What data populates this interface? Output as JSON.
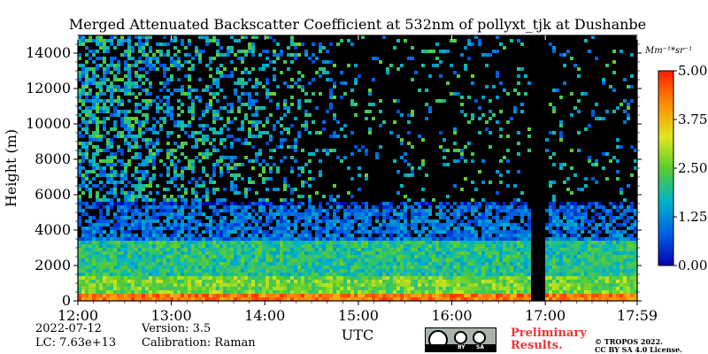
{
  "chart_data": {
    "type": "heatmap",
    "title": "Merged Attenuated Backscatter Coefficient at 532nm of pollyxt_tjk at Dushanbe",
    "xlabel": "UTC",
    "ylabel": "Height (m)",
    "x_ticks": [
      "12:00",
      "13:00",
      "14:00",
      "15:00",
      "16:00",
      "17:00",
      "17:59"
    ],
    "x_range_hours": [
      12.0,
      17.983
    ],
    "y_ticks": [
      0,
      2000,
      4000,
      6000,
      8000,
      10000,
      12000,
      14000
    ],
    "ylim": [
      0,
      15000
    ],
    "colorbar": {
      "label": "Mm⁻¹*sr⁻¹",
      "ticks": [
        "0.00",
        "1.25",
        "2.50",
        "3.75",
        "5.00"
      ],
      "range": [
        0,
        5
      ],
      "colormap": "jet"
    },
    "no_data_periods": [
      [
        16.83,
        17.0
      ]
    ],
    "profile_summary": [
      {
        "height_range": [
          0,
          400
        ],
        "intensity": 4.3
      },
      {
        "height_range": [
          400,
          1500
        ],
        "intensity": 2.6
      },
      {
        "height_range": [
          1500,
          3500
        ],
        "intensity": 2.0
      },
      {
        "height_range": [
          3500,
          5500
        ],
        "intensity": 1.0
      },
      {
        "height_range": [
          5500,
          15000
        ],
        "intensity": 0.5
      }
    ]
  },
  "footer": {
    "date": "2022-07-12",
    "lc": "LC: 7.63e+13",
    "version": "Version: 3.5",
    "calibration": "Calibration: Raman",
    "preliminary_line1": "Preliminary",
    "preliminary_line2": "Results.",
    "copyright_line1": "© TROPOS 2022.",
    "copyright_line2": "CC BY SA 4.0 License.",
    "cc_labels": [
      "cc",
      "BY",
      "SA"
    ]
  }
}
